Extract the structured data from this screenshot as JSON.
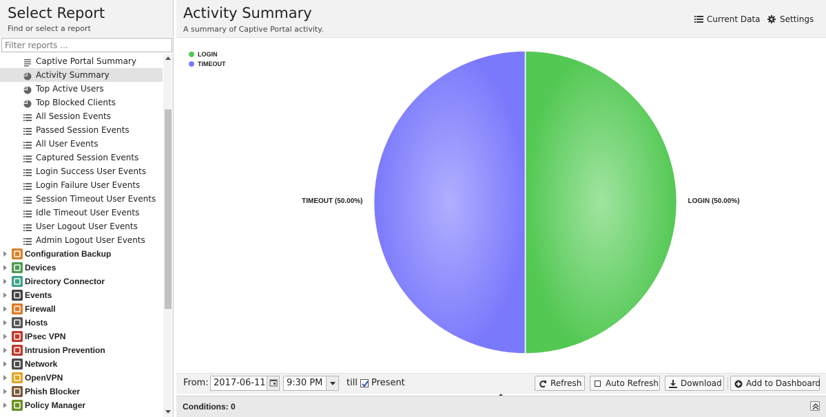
{
  "sidebar": {
    "title": "Select Report",
    "subtitle": "Find or select a report",
    "filter_placeholder": "Filter reports ...",
    "reports": [
      {
        "label": "Captive Portal Summary",
        "icon": "text-icon",
        "selected": false
      },
      {
        "label": "Activity Summary",
        "icon": "pie-chart-icon",
        "selected": true
      },
      {
        "label": "Top Active Users",
        "icon": "pie-chart-icon",
        "selected": false
      },
      {
        "label": "Top Blocked Clients",
        "icon": "pie-chart-icon",
        "selected": false
      },
      {
        "label": "All Session Events",
        "icon": "list-icon",
        "selected": false
      },
      {
        "label": "Passed Session Events",
        "icon": "list-icon",
        "selected": false
      },
      {
        "label": "All User Events",
        "icon": "list-icon",
        "selected": false
      },
      {
        "label": "Captured Session Events",
        "icon": "list-icon",
        "selected": false
      },
      {
        "label": "Login Success User Events",
        "icon": "list-icon",
        "selected": false
      },
      {
        "label": "Login Failure User Events",
        "icon": "list-icon",
        "selected": false
      },
      {
        "label": "Session Timeout User Events",
        "icon": "list-icon",
        "selected": false
      },
      {
        "label": "Idle Timeout User Events",
        "icon": "list-icon",
        "selected": false
      },
      {
        "label": "User Logout User Events",
        "icon": "list-icon",
        "selected": false
      },
      {
        "label": "Admin Logout User Events",
        "icon": "list-icon",
        "selected": false
      }
    ],
    "categories": [
      {
        "label": "Configuration Backup",
        "icon": "configuration-backup-icon",
        "color": "#d9822b"
      },
      {
        "label": "Devices",
        "icon": "devices-icon",
        "color": "#4f9a55"
      },
      {
        "label": "Directory Connector",
        "icon": "directory-connector-icon",
        "color": "#3fa389"
      },
      {
        "label": "Events",
        "icon": "events-icon",
        "color": "#444444"
      },
      {
        "label": "Firewall",
        "icon": "firewall-icon",
        "color": "#e07b24"
      },
      {
        "label": "Hosts",
        "icon": "hosts-icon",
        "color": "#555555"
      },
      {
        "label": "IPsec VPN",
        "icon": "ipsec-vpn-icon",
        "color": "#c0392b"
      },
      {
        "label": "Intrusion Prevention",
        "icon": "intrusion-prevention-icon",
        "color": "#c0392b"
      },
      {
        "label": "Network",
        "icon": "network-icon",
        "color": "#4a4a4a"
      },
      {
        "label": "OpenVPN",
        "icon": "openvpn-icon",
        "color": "#e0a526"
      },
      {
        "label": "Phish Blocker",
        "icon": "phish-blocker-icon",
        "color": "#7a5a3a"
      },
      {
        "label": "Policy Manager",
        "icon": "policy-manager-icon",
        "color": "#6b8e23"
      }
    ]
  },
  "report": {
    "title": "Activity Summary",
    "subtitle": "A summary of Captive Portal activity.",
    "current_data_label": "Current Data",
    "settings_label": "Settings"
  },
  "chart_data": {
    "type": "pie",
    "title": "",
    "legend_position": "top-left",
    "slices": [
      {
        "name": "LOGIN",
        "value": 50,
        "label": "LOGIN (50.00%)",
        "color": "#53c853"
      },
      {
        "name": "TIMEOUT",
        "value": 50,
        "label": "TIMEOUT (50.00%)",
        "color": "#7b79fb"
      }
    ]
  },
  "toolbar": {
    "from_label": "From:",
    "from_date": "2017-06-11",
    "from_time": "9:30 PM",
    "till_label": "till",
    "present_label": "Present",
    "present_checked": true,
    "refresh_label": "Refresh",
    "auto_refresh_label": "Auto Refresh",
    "download_label": "Download",
    "add_dashboard_label": "Add to Dashboard"
  },
  "conditions": {
    "label": "Conditions: 0"
  }
}
